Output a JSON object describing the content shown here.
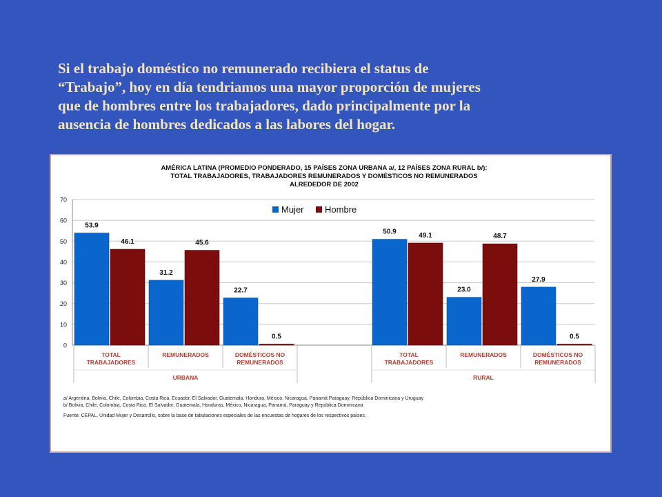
{
  "slide": {
    "text_lines": [
      "Si el trabajo doméstico no remunerado recibiera el status de",
      "“Trabajo”, hoy en día tendriamos una mayor proporción de mujeres",
      "que de hombres entre los trabajadores, dado principalmente por la",
      "ausencia de hombres dedicados a las labores del hogar."
    ]
  },
  "colors": {
    "background": "#3355BE",
    "slide_text": "#F3E5B8",
    "mujer": "#0A66CC",
    "hombre": "#7B0D0D",
    "category_label": "#C0392B",
    "frame_border": "#C8A0A0"
  },
  "chart_data": {
    "type": "bar",
    "title_lines": [
      "AMÉRICA LATINA  (PROMEDIO PONDERADO, 15 PAÍSES ZONA URBANA a/,  12 PAÍSES ZONA RURAL b/):",
      "TOTAL TRABAJADORES, TRABAJADORES REMUNERADOS Y DOMÉSTICOS NO REMUNERADOS",
      "ALREDEDOR DE 2002"
    ],
    "ylim": [
      0,
      70
    ],
    "yticks": [
      0,
      10,
      20,
      30,
      40,
      50,
      60,
      70
    ],
    "grid": true,
    "legend_position": "top-center",
    "series": [
      {
        "name": "Mujer",
        "color": "#0A66CC"
      },
      {
        "name": "Hombre",
        "color": "#7B0D0D"
      }
    ],
    "groups": [
      {
        "label": "URBANA",
        "categories": [
          {
            "label_lines": [
              "TOTAL",
              "TRABAJADORES"
            ],
            "values": [
              53.9,
              46.1
            ],
            "value_labels": [
              "53.9",
              "46.1"
            ]
          },
          {
            "label_lines": [
              "REMUNERADOS"
            ],
            "values": [
              31.2,
              45.6
            ],
            "value_labels": [
              "31.2",
              "45.6"
            ]
          },
          {
            "label_lines": [
              "DOMÉSTICOS NO",
              "REMUNERADOS"
            ],
            "values": [
              22.7,
              0.5
            ],
            "value_labels": [
              "22.7",
              "0.5"
            ]
          }
        ]
      },
      {
        "label": "RURAL",
        "categories": [
          {
            "label_lines": [
              "TOTAL",
              "TRABAJADORES"
            ],
            "values": [
              50.9,
              49.1
            ],
            "value_labels": [
              "50.9",
              "49.1"
            ]
          },
          {
            "label_lines": [
              "REMUNERADOS"
            ],
            "values": [
              23.0,
              48.7
            ],
            "value_labels": [
              "23.0",
              "48.7"
            ]
          },
          {
            "label_lines": [
              "DOMÉSTICOS NO",
              "REMUNERADOS"
            ],
            "values": [
              27.9,
              0.5
            ],
            "value_labels": [
              "27.9",
              "0.5"
            ]
          }
        ]
      }
    ],
    "notes": [
      "a/  Argentina, Bolivia, Chile, Colombia, Costa Rica, Ecuador, El Salvador, Guatemala, Hondura, México, Nicaragua, Panamá Paraguay, República Dominicana y Uruguay",
      "b/  Bolivia, Chile, Colombia, Costa Rica, El Salvador, Guatemala, Honduras, México, Nicaragua, Panamá, Paraguay  y República Dominicana"
    ],
    "source": "Fuente: CEPAL, Unidad Mujer y Desarrollo, sobre la base de tabulaciones especiales de las encuestas de hogares de los respectivos países."
  }
}
